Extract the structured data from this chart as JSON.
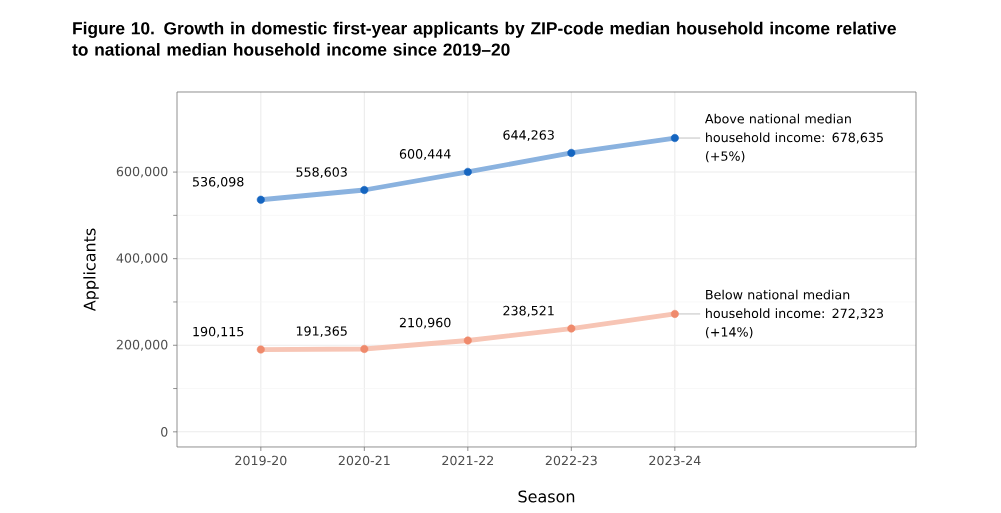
{
  "chart_data": {
    "type": "line",
    "title": "Figure 10. Growth in domestic first-year applicants by ZIP-code median household income relative to national median household income since 2019–20",
    "xlabel": "Season",
    "ylabel": "Applicants",
    "categories": [
      "2019-20",
      "2020-21",
      "2021-22",
      "2022-23",
      "2023-24"
    ],
    "series": [
      {
        "name": "Above national median household income: 678,635 (+5%)",
        "color": "#1565c0",
        "values": [
          536098,
          558603,
          600444,
          644263,
          678635
        ],
        "value_labels": [
          "536,098",
          "558,603",
          "600,444",
          "644,263",
          null
        ]
      },
      {
        "name": "Below national median household income: 272,323 (+14%)",
        "color": "#ef8a6c",
        "values": [
          190115,
          191365,
          210960,
          238521,
          272323
        ],
        "value_labels": [
          "190,115",
          "191,365",
          "210,960",
          "238,521",
          null
        ]
      }
    ],
    "ylim": [
      -35000,
      785000
    ],
    "yticks": [
      {
        "value": 0,
        "label": "0"
      },
      {
        "value": 200000,
        "label": "200,000"
      },
      {
        "value": 400000,
        "label": "400,000"
      },
      {
        "value": 600000,
        "label": "600,000"
      }
    ],
    "grid": true,
    "marker": "circle",
    "line_style": "solid"
  }
}
